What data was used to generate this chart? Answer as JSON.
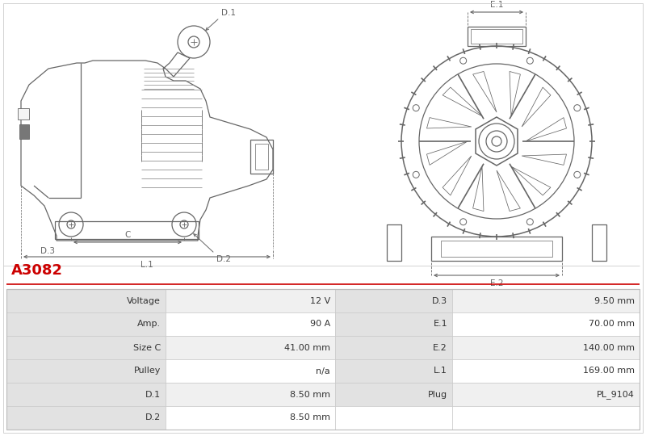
{
  "title": "A3082",
  "title_color": "#cc0000",
  "bg_color": "#ffffff",
  "table_row_bg_odd": "#f0f0f0",
  "table_row_bg_even": "#ffffff",
  "table_label_bg": "#e2e2e2",
  "rows": [
    [
      "Voltage",
      "12 V",
      "D.3",
      "9.50 mm"
    ],
    [
      "Amp.",
      "90 A",
      "E.1",
      "70.00 mm"
    ],
    [
      "Size C",
      "41.00 mm",
      "E.2",
      "140.00 mm"
    ],
    [
      "Pulley",
      "n/a",
      "L.1",
      "169.00 mm"
    ],
    [
      "D.1",
      "8.50 mm",
      "Plug",
      "PL_9104"
    ],
    [
      "D.2",
      "8.50 mm",
      "",
      ""
    ]
  ],
  "lc": "#666666",
  "lw": 0.9,
  "dim_color": "#666666"
}
